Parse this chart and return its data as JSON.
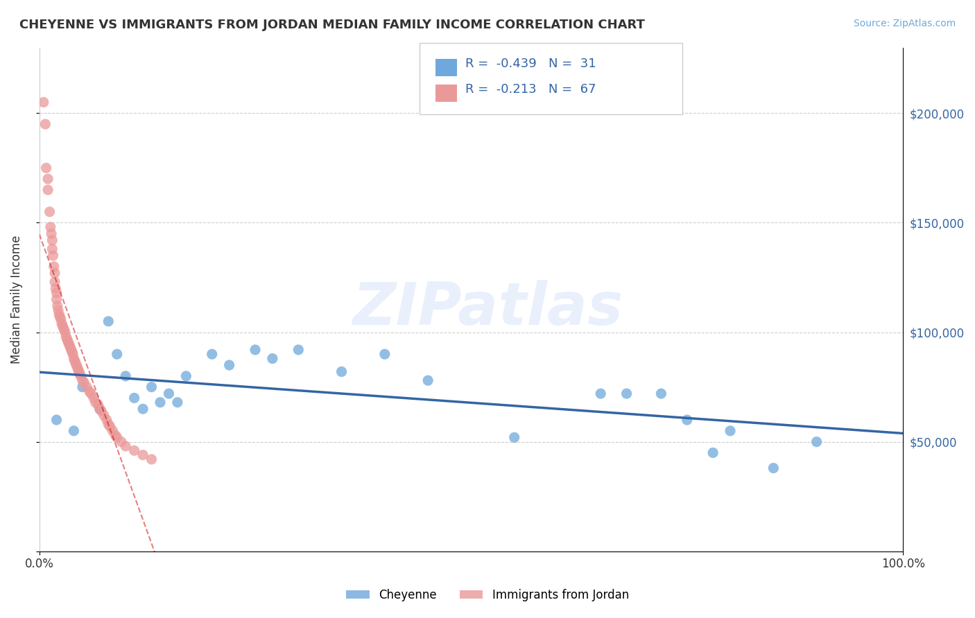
{
  "title": "CHEYENNE VS IMMIGRANTS FROM JORDAN MEDIAN FAMILY INCOME CORRELATION CHART",
  "source_text": "Source: ZipAtlas.com",
  "ylabel_left": "Median Family Income",
  "x_min": 0.0,
  "x_max": 1.0,
  "y_min": 0,
  "y_max": 230000,
  "yticks": [
    0,
    50000,
    100000,
    150000,
    200000
  ],
  "ytick_labels": [
    "",
    "$50,000",
    "$100,000",
    "$150,000",
    "$200,000"
  ],
  "xtick_labels": [
    "0.0%",
    "100.0%"
  ],
  "legend_r_blue": "R =  -0.439",
  "legend_n_blue": "N =  31",
  "legend_r_pink": "R =  -0.213",
  "legend_n_pink": "N =  67",
  "legend_label_blue": "Cheyenne",
  "legend_label_pink": "Immigrants from Jordan",
  "blue_color": "#6fa8dc",
  "pink_color": "#ea9999",
  "line_blue_color": "#3465a4",
  "line_pink_color": "#cc0000",
  "watermark_text": "ZIPatlas",
  "blue_scatter_x": [
    0.02,
    0.04,
    0.05,
    0.07,
    0.08,
    0.09,
    0.1,
    0.11,
    0.12,
    0.13,
    0.14,
    0.15,
    0.16,
    0.17,
    0.2,
    0.22,
    0.25,
    0.27,
    0.3,
    0.35,
    0.4,
    0.45,
    0.55,
    0.65,
    0.68,
    0.72,
    0.75,
    0.78,
    0.8,
    0.85,
    0.9
  ],
  "blue_scatter_y": [
    60000,
    55000,
    75000,
    65000,
    105000,
    90000,
    80000,
    70000,
    65000,
    75000,
    68000,
    72000,
    68000,
    80000,
    90000,
    85000,
    92000,
    88000,
    92000,
    82000,
    90000,
    78000,
    52000,
    72000,
    72000,
    72000,
    60000,
    45000,
    55000,
    38000,
    50000
  ],
  "pink_scatter_x": [
    0.005,
    0.007,
    0.008,
    0.01,
    0.01,
    0.012,
    0.013,
    0.014,
    0.015,
    0.015,
    0.016,
    0.017,
    0.018,
    0.018,
    0.019,
    0.02,
    0.02,
    0.021,
    0.022,
    0.023,
    0.024,
    0.025,
    0.026,
    0.027,
    0.028,
    0.029,
    0.03,
    0.031,
    0.032,
    0.033,
    0.034,
    0.035,
    0.036,
    0.037,
    0.038,
    0.039,
    0.04,
    0.041,
    0.042,
    0.043,
    0.044,
    0.045,
    0.046,
    0.047,
    0.048,
    0.05,
    0.052,
    0.055,
    0.058,
    0.06,
    0.063,
    0.065,
    0.068,
    0.07,
    0.072,
    0.075,
    0.078,
    0.08,
    0.082,
    0.085,
    0.088,
    0.09,
    0.095,
    0.1,
    0.11,
    0.12,
    0.13
  ],
  "pink_scatter_y": [
    205000,
    195000,
    175000,
    170000,
    165000,
    155000,
    148000,
    145000,
    142000,
    138000,
    135000,
    130000,
    127000,
    123000,
    120000,
    118000,
    115000,
    112000,
    110000,
    108000,
    107000,
    106000,
    104000,
    103000,
    102000,
    101000,
    100000,
    98000,
    97000,
    96000,
    95000,
    94000,
    93000,
    92000,
    91000,
    90000,
    88000,
    87000,
    86000,
    85000,
    84000,
    83000,
    82000,
    81000,
    80000,
    78000,
    77000,
    75000,
    73000,
    72000,
    70000,
    68000,
    67000,
    65000,
    64000,
    62000,
    60000,
    58000,
    57000,
    55000,
    53000,
    52000,
    50000,
    48000,
    46000,
    44000,
    42000
  ]
}
